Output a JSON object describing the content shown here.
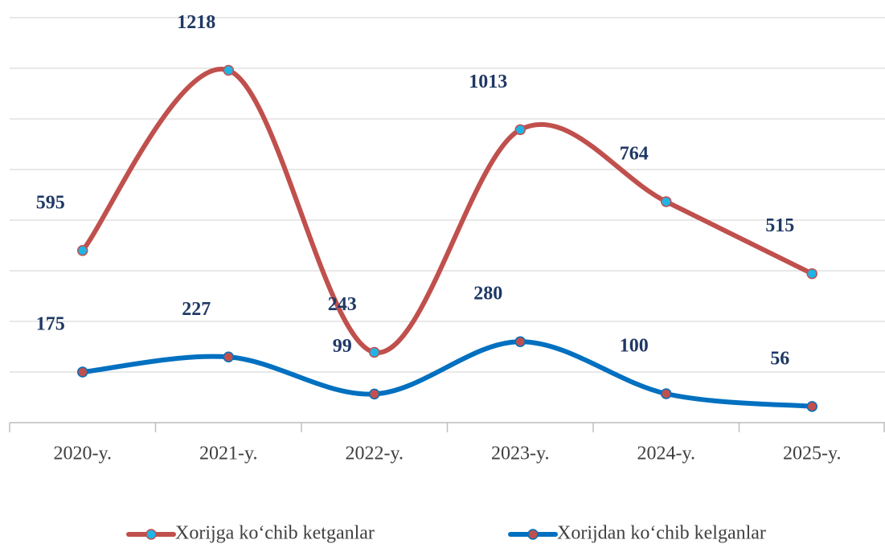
{
  "chart_data": {
    "type": "line",
    "categories": [
      "2020-y.",
      "2021-y.",
      "2022-y.",
      "2023-y.",
      "2024-y.",
      "2025-y."
    ],
    "series": [
      {
        "name": "Xorijga ko‘chib ketganlar",
        "color": "#c0504d",
        "marker_color": "#1fb4e6",
        "values": [
          595,
          1218,
          243,
          1013,
          764,
          515
        ]
      },
      {
        "name": "Xorijdan ko‘chib kelganlar",
        "color": "#0070c0",
        "marker_color": "#c0504d",
        "values": [
          175,
          227,
          99,
          280,
          100,
          56
        ]
      }
    ],
    "ylim": [
      0,
      1400
    ],
    "yticks": [
      0,
      175,
      350,
      525,
      700,
      875,
      1050,
      1225,
      1400
    ],
    "grid": true,
    "smooth": true,
    "legend": "bottom"
  }
}
